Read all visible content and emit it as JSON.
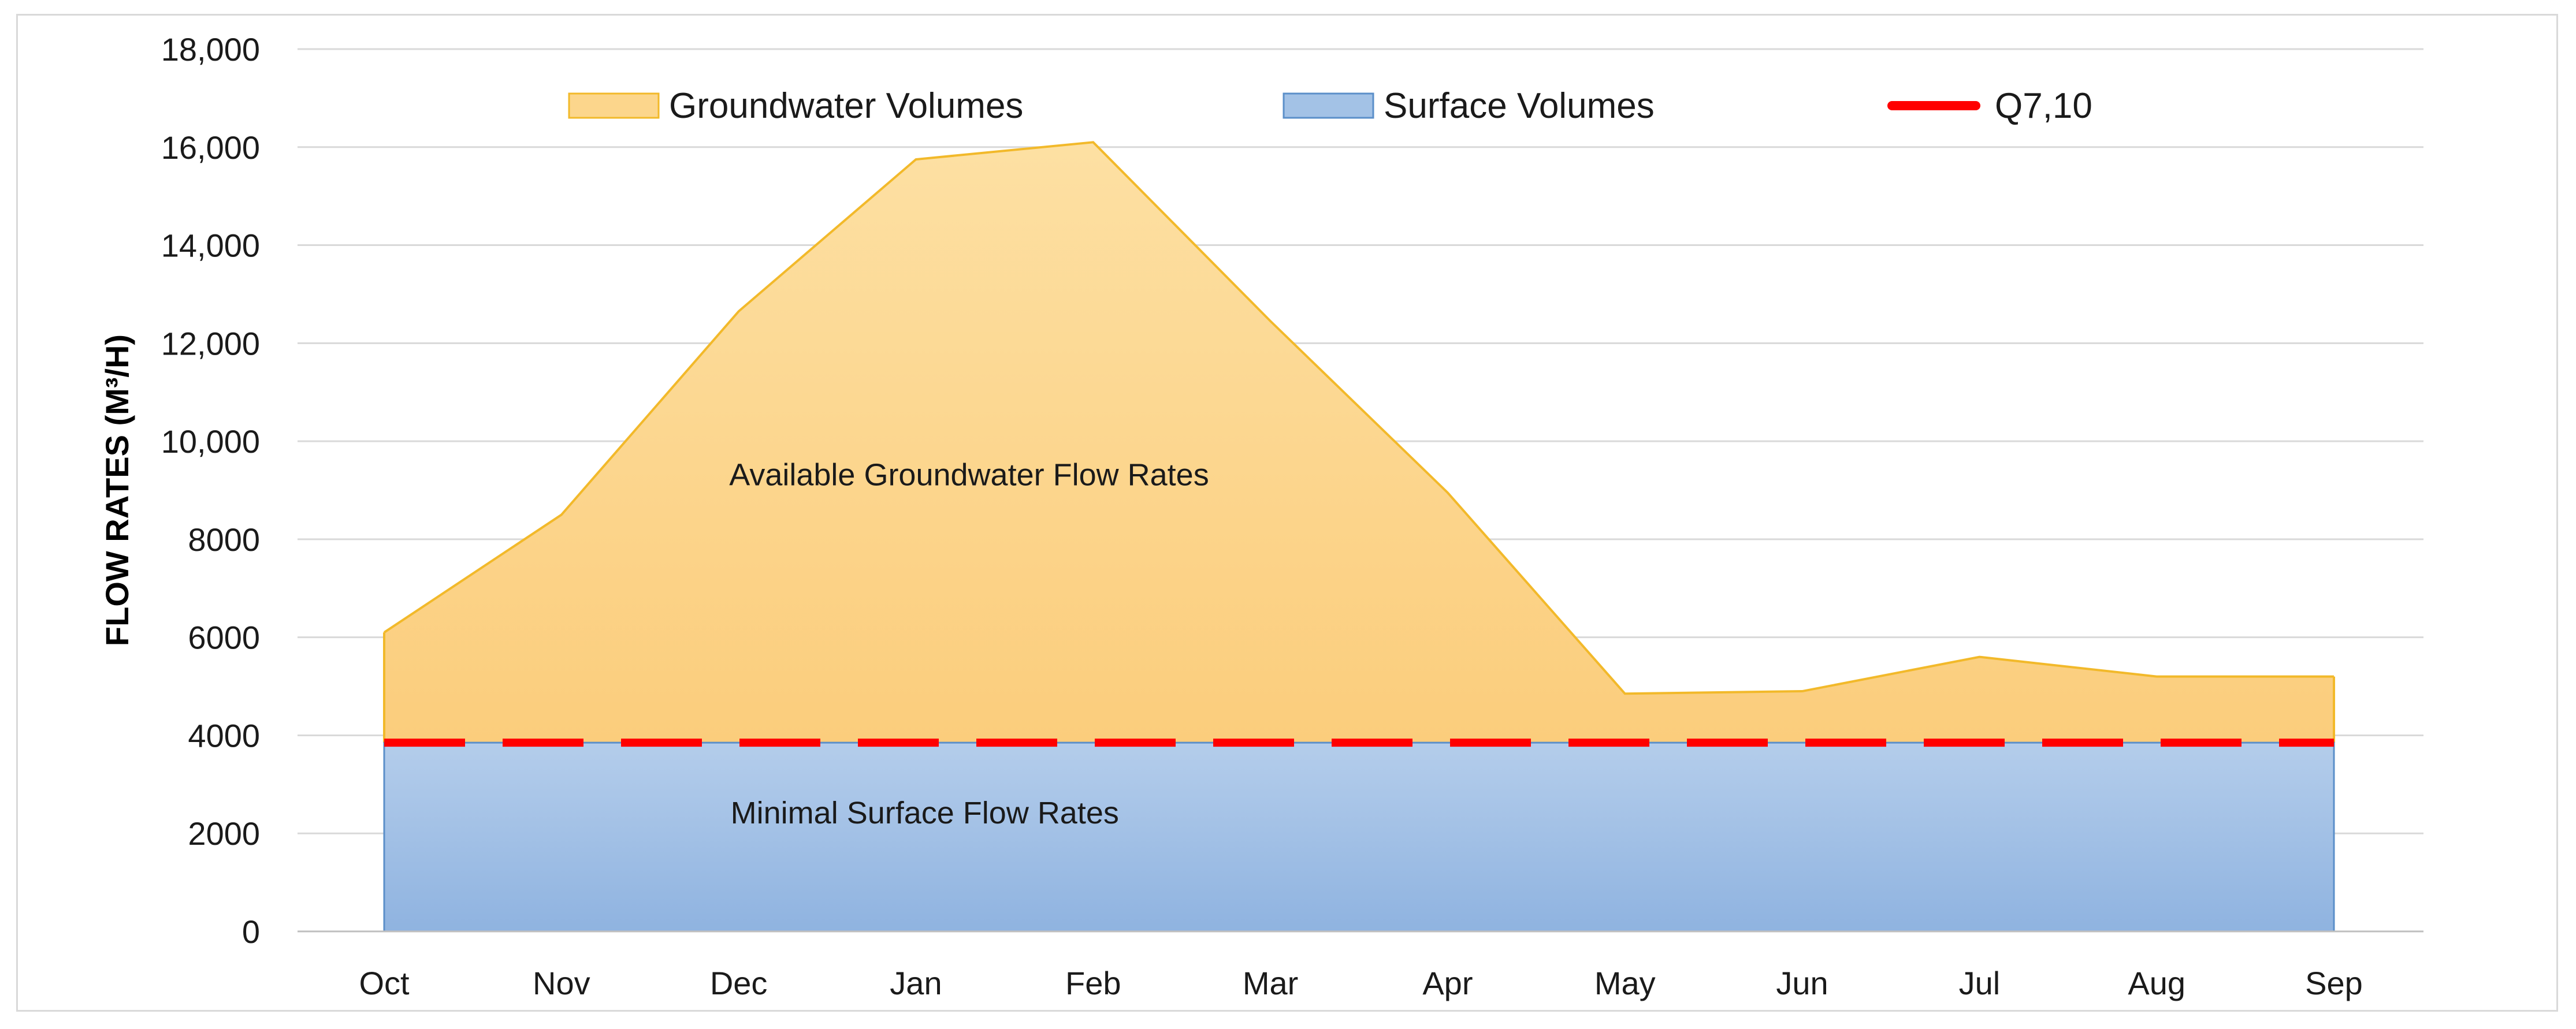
{
  "chart_data": {
    "type": "area",
    "categories": [
      "Oct",
      "Nov",
      "Dec",
      "Jan",
      "Feb",
      "Mar",
      "Apr",
      "May",
      "Jun",
      "Jul",
      "Aug",
      "Sep"
    ],
    "series": [
      {
        "name": "Groundwater Volumes",
        "values": [
          6100,
          8500,
          12650,
          15750,
          16100,
          12450,
          8950,
          4850,
          4900,
          5600,
          5200,
          5200
        ],
        "color": "#fcd68c",
        "stroke": "#f2b92a"
      },
      {
        "name": "Surface Volumes",
        "values": [
          3850,
          3850,
          3850,
          3850,
          3850,
          3850,
          3850,
          3850,
          3850,
          3850,
          3850,
          3850
        ],
        "color": "#a3c2e6",
        "stroke": "#5b8fc9"
      },
      {
        "name": "Q7,10",
        "values": [
          3850,
          3850,
          3850,
          3850,
          3850,
          3850,
          3850,
          3850,
          3850,
          3850,
          3850,
          3850
        ],
        "color": "#ff0000",
        "style": "dashed"
      }
    ],
    "ylabel": "FLOW RATES (M³/H)",
    "xlabel": "",
    "ylim": [
      0,
      18000
    ],
    "yticks": [
      0,
      2000,
      4000,
      6000,
      8000,
      10000,
      12000,
      14000,
      16000,
      18000
    ],
    "ytick_labels": [
      "0",
      "2000",
      "4000",
      "6000",
      "8000",
      "10,000",
      "12,000",
      "14,000",
      "16,000",
      "18,000"
    ],
    "grid": true,
    "legend_position": "top-center",
    "annotations": [
      {
        "text": "Available Groundwater Flow Rates",
        "x_index": 3.3,
        "y": 9100
      },
      {
        "text": "Minimal Surface Flow Rates",
        "x_index": 3.05,
        "y": 2200
      }
    ]
  }
}
